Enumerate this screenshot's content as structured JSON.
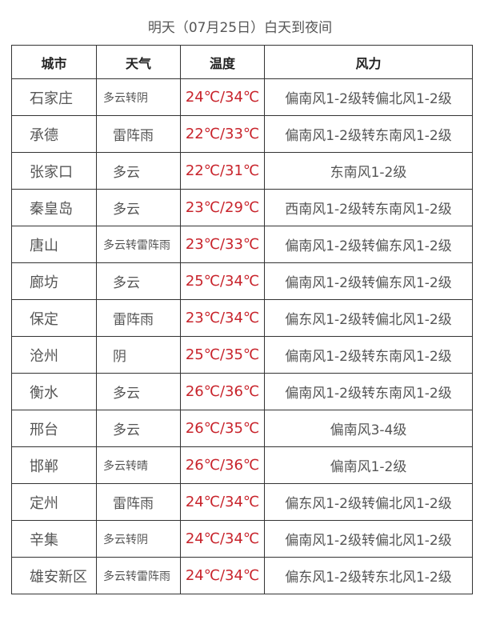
{
  "title": "明天（07月25日）白天到夜间",
  "headers": {
    "city": "城市",
    "weather": "天气",
    "temp": "温度",
    "wind": "风力"
  },
  "colors": {
    "temperature": "#c8232b",
    "text": "#555555"
  },
  "rows": [
    {
      "city": "石家庄",
      "weather": "多云转阴",
      "temp": "24℃/34℃",
      "wind": "偏南风1-2级转偏北风1-2级"
    },
    {
      "city": "承德",
      "weather": "雷阵雨",
      "temp": "22℃/33℃",
      "wind": "偏南风1-2级转东南风1-2级"
    },
    {
      "city": "张家口",
      "weather": "多云",
      "temp": "22℃/31℃",
      "wind": "东南风1-2级"
    },
    {
      "city": "秦皇岛",
      "weather": "多云",
      "temp": "23℃/29℃",
      "wind": "西南风1-2级转东南风1-2级"
    },
    {
      "city": "唐山",
      "weather": "多云转雷阵雨",
      "temp": "23℃/33℃",
      "wind": "偏南风1-2级转偏东风1-2级"
    },
    {
      "city": "廊坊",
      "weather": "多云",
      "temp": "25℃/34℃",
      "wind": "偏南风1-2级转偏东风1-2级"
    },
    {
      "city": "保定",
      "weather": "雷阵雨",
      "temp": "23℃/34℃",
      "wind": "偏东风1-2级转偏北风1-2级"
    },
    {
      "city": "沧州",
      "weather": "阴",
      "temp": "25℃/35℃",
      "wind": "偏南风1-2级转东南风1-2级"
    },
    {
      "city": "衡水",
      "weather": "多云",
      "temp": "26℃/36℃",
      "wind": "偏南风1-2级转东南风1-2级"
    },
    {
      "city": "邢台",
      "weather": "多云",
      "temp": "26℃/35℃",
      "wind": "偏南风3-4级"
    },
    {
      "city": "邯郸",
      "weather": "多云转晴",
      "temp": "26℃/36℃",
      "wind": "偏南风1-2级"
    },
    {
      "city": "定州",
      "weather": "雷阵雨",
      "temp": "24℃/34℃",
      "wind": "偏东风1-2级转偏北风1-2级"
    },
    {
      "city": "辛集",
      "weather": "多云转阴",
      "temp": "24℃/34℃",
      "wind": "偏南风1-2级转偏北风1-2级"
    },
    {
      "city": "雄安新区",
      "weather": "多云转雷阵雨",
      "temp": "24℃/34℃",
      "wind": "偏东风1-2级转东北风1-2级"
    }
  ]
}
